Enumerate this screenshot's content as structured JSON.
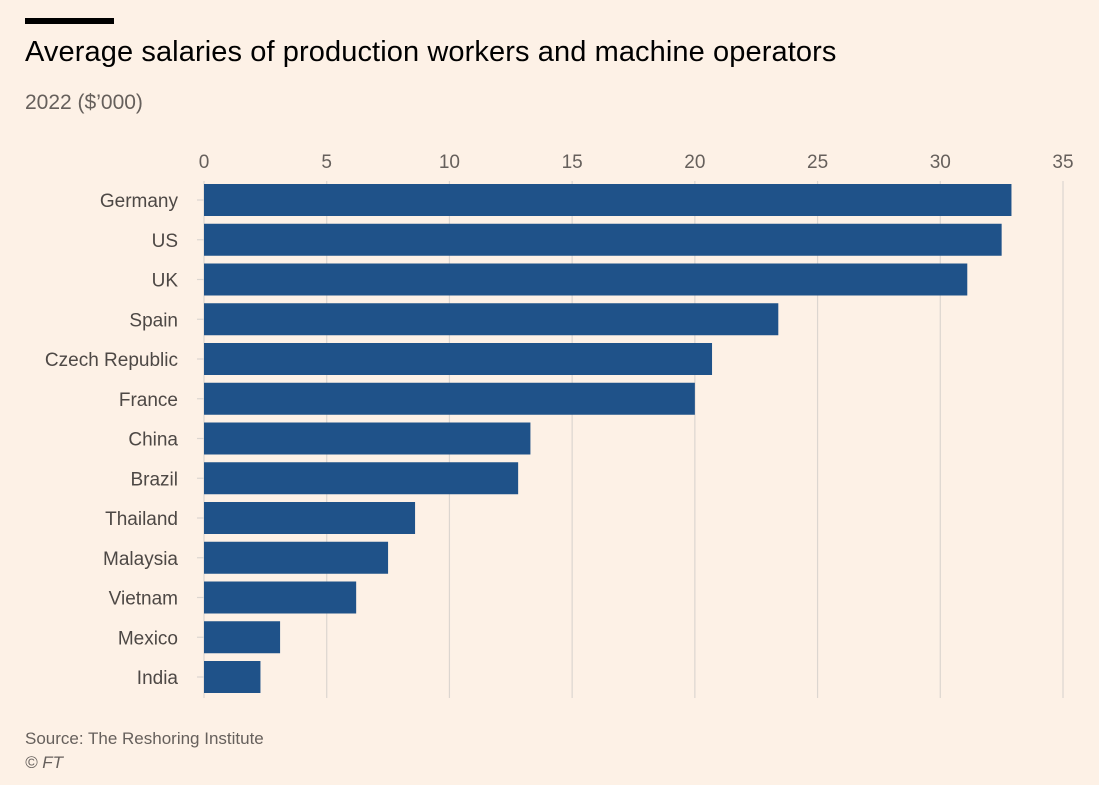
{
  "header": {
    "title": "Average salaries of production workers and machine operators",
    "subtitle": "2022 ($’000)"
  },
  "footer": {
    "source": "Source: The Reshoring Institute",
    "copyright": "© FT"
  },
  "colors": {
    "background": "#fdf1e6",
    "bar": "#1f5289",
    "gridline": "#dcd6d0",
    "axis_text": "#66605c",
    "label_text": "#4d4845",
    "top_rule": "#000000"
  },
  "chart_data": {
    "type": "bar",
    "orientation": "horizontal",
    "title": "Average salaries of production workers and machine operators",
    "subtitle": "2022 ($’000)",
    "xlabel": "",
    "ylabel": "",
    "xlim": [
      0,
      35
    ],
    "xticks": [
      0,
      5,
      10,
      15,
      20,
      25,
      30,
      35
    ],
    "x_axis_position": "top",
    "grid": true,
    "legend": "none",
    "categories": [
      "Germany",
      "US",
      "UK",
      "Spain",
      "Czech Republic",
      "France",
      "China",
      "Brazil",
      "Thailand",
      "Malaysia",
      "Vietnam",
      "Mexico",
      "India"
    ],
    "values": [
      32.9,
      32.5,
      31.1,
      23.4,
      20.7,
      20.0,
      13.3,
      12.8,
      8.6,
      7.5,
      6.2,
      3.1,
      2.3
    ]
  }
}
